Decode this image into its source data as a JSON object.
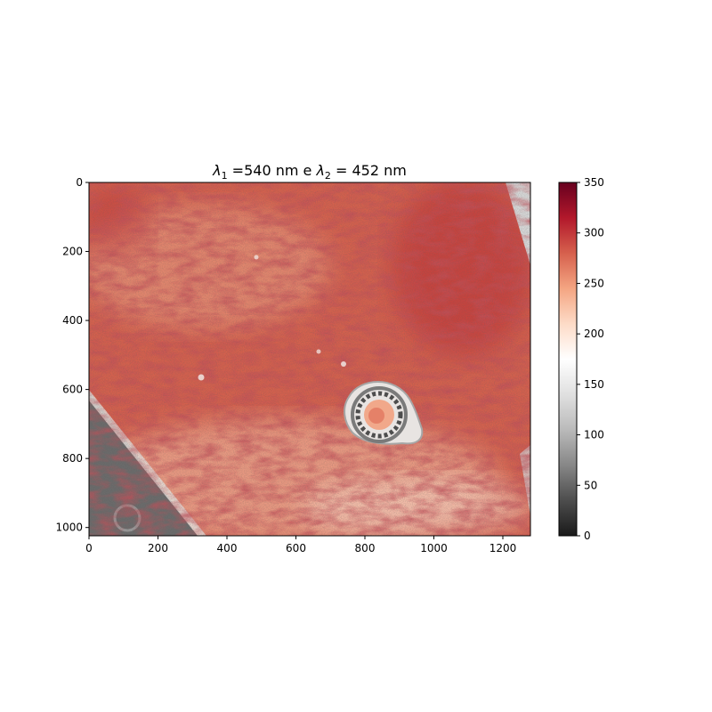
{
  "chart_data": {
    "type": "heatmap",
    "title_parts": {
      "symbol": "λ",
      "sub1": "1",
      "mid": " =540 nm e ",
      "sub2": "2",
      "tail": " = 452 nm"
    },
    "xlabel": "",
    "ylabel": "",
    "x_range": [
      0,
      1280
    ],
    "y_range": [
      0,
      1024
    ],
    "y_inverted": true,
    "x_ticks": [
      "0",
      "200",
      "400",
      "600",
      "800",
      "1000",
      "1200"
    ],
    "y_ticks": [
      "0",
      "200",
      "400",
      "600",
      "800",
      "1000"
    ],
    "colorbar": {
      "range": [
        0,
        350
      ],
      "ticks": [
        "0",
        "50",
        "100",
        "150",
        "200",
        "250",
        "300",
        "350"
      ],
      "colormap": "RdGy_r",
      "stops": [
        "#1a1a1a",
        "#4d4d4d",
        "#878787",
        "#bababa",
        "#e0e0e0",
        "#ffffff",
        "#fddbc7",
        "#f4a582",
        "#d6604d",
        "#b2182b",
        "#67001f"
      ]
    },
    "grid": false,
    "description_regions": {
      "background_value": 280,
      "dark_corner_value": 60,
      "ring_feature_value": 150
    }
  }
}
